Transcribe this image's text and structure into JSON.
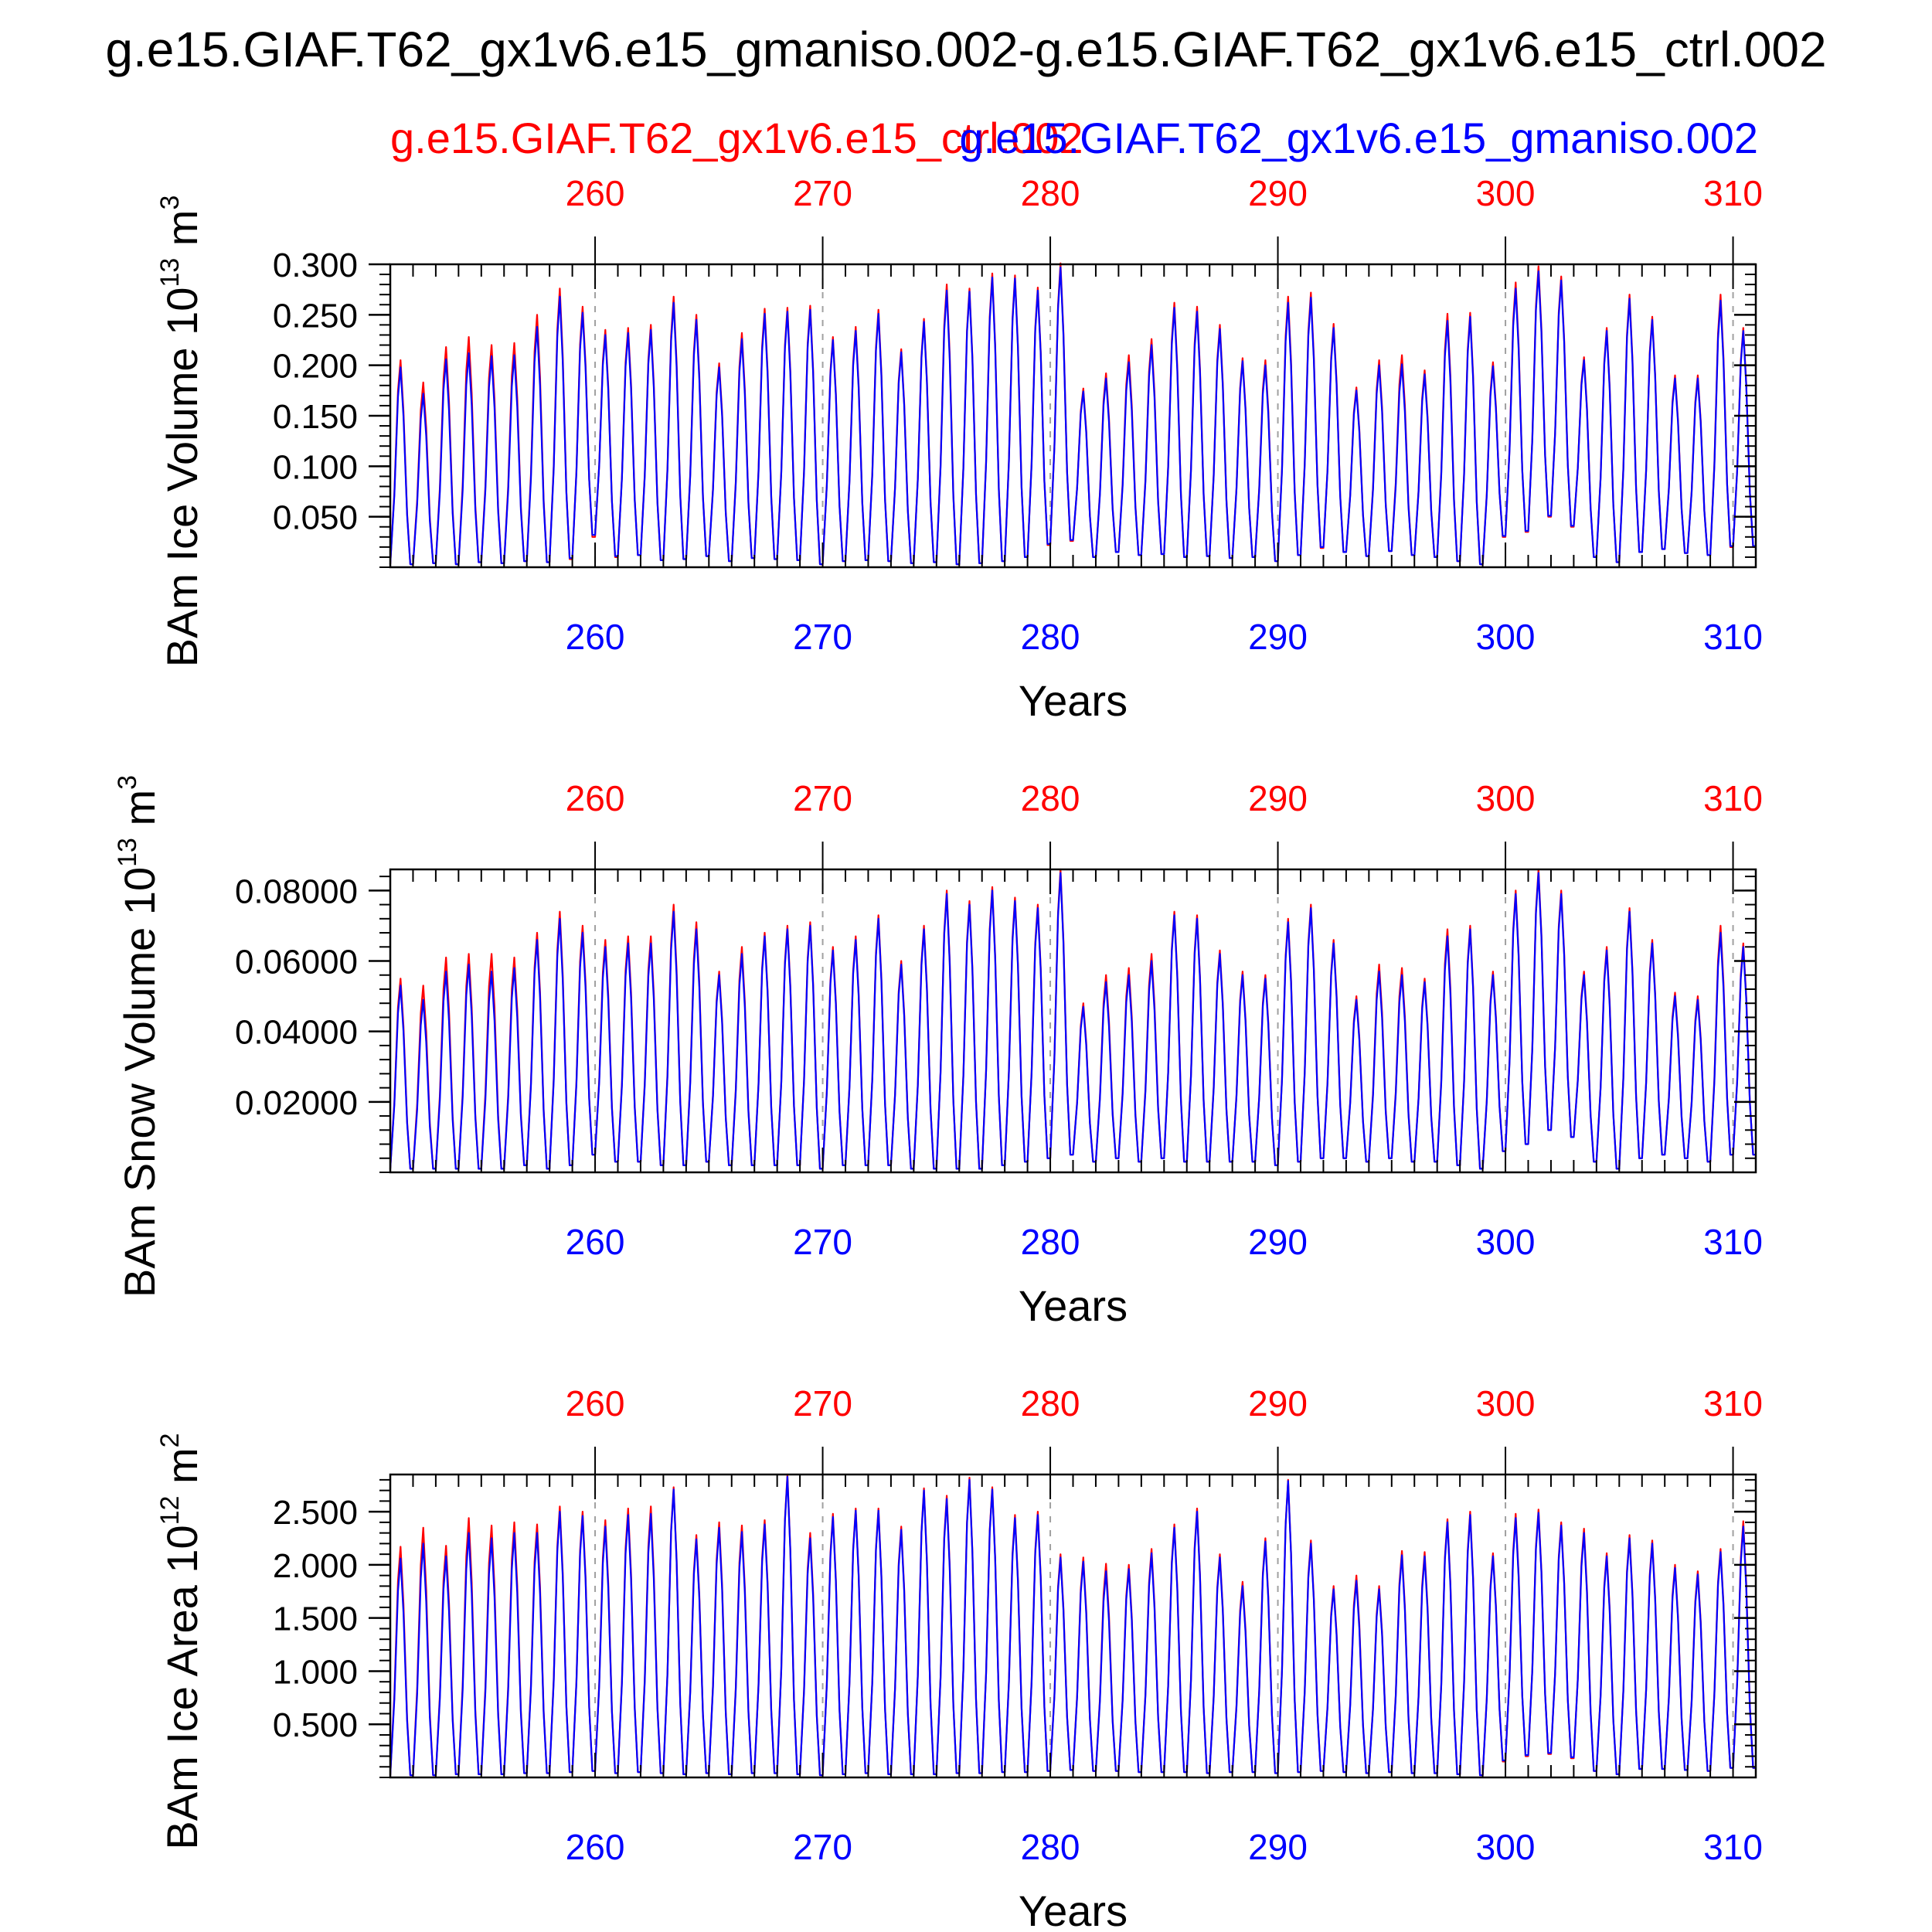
{
  "figure": {
    "title": "g.e15.GIAF.T62_gx1v6.e15_gmaniso.002-g.e15.GIAF.T62_gx1v6.e15_ctrl.002",
    "legend_red": "g.e15.GIAF.T62_gx1v6.e15_ctrl.002",
    "legend_blue": "g.e15.GIAF.T62_gx1v6.e15_gmaniso.002"
  },
  "colors": {
    "ctrl": "#ff0000",
    "gmaniso": "#0000ff",
    "axis": "#000000",
    "grid": "#a0a0a0"
  },
  "chart_data": [
    {
      "type": "line",
      "id": "ice_volume",
      "ylabel": "BAm Ice Volume 10",
      "ylabel_exp": "13",
      "ylabel_unit": " m",
      "ylabel_unit_exp": "3",
      "xlabel": "Years",
      "xlim": [
        251,
        311
      ],
      "ylim": [
        0.0,
        0.3
      ],
      "yticks": [
        0.05,
        0.1,
        0.15,
        0.2,
        0.25,
        0.3
      ],
      "ytick_labels": [
        "0.050",
        "0.100",
        "0.150",
        "0.200",
        "0.250",
        "0.300"
      ],
      "xticks": [
        260,
        270,
        280,
        290,
        300,
        310
      ],
      "xtick_labels": [
        "260",
        "270",
        "280",
        "290",
        "300",
        "310"
      ],
      "years": [
        251,
        252,
        253,
        254,
        255,
        256,
        257,
        258,
        259,
        260,
        261,
        262,
        263,
        264,
        265,
        266,
        267,
        268,
        269,
        270,
        271,
        272,
        273,
        274,
        275,
        276,
        277,
        278,
        279,
        280,
        281,
        282,
        283,
        284,
        285,
        286,
        287,
        288,
        289,
        290,
        291,
        292,
        293,
        294,
        295,
        296,
        297,
        298,
        299,
        300,
        301,
        302,
        303,
        304,
        305,
        306,
        307,
        308,
        309,
        310,
        311
      ],
      "series": [
        {
          "name": "g.e15.GIAF.T62_gx1v6.e15_ctrl.002",
          "color": "#ff0000",
          "max": [
            0.205,
            0.183,
            0.218,
            0.228,
            0.22,
            0.222,
            0.25,
            0.276,
            0.258,
            0.235,
            0.237,
            0.24,
            0.268,
            0.25,
            0.202,
            0.232,
            0.256,
            0.257,
            0.259,
            0.228,
            0.238,
            0.255,
            0.216,
            0.246,
            0.28,
            0.276,
            0.291,
            0.289,
            0.277,
            0.301,
            0.177,
            0.192,
            0.21,
            0.226,
            0.262,
            0.258,
            0.24,
            0.207,
            0.205,
            0.268,
            0.272,
            0.241,
            0.178,
            0.205,
            0.21,
            0.195,
            0.251,
            0.252,
            0.203,
            0.282,
            0.298,
            0.288,
            0.208,
            0.237,
            0.27,
            0.248,
            0.19,
            0.19,
            0.27,
            0.237,
            0.237
          ],
          "min": [
            0.003,
            0.004,
            0.003,
            0.005,
            0.004,
            0.006,
            0.005,
            0.008,
            0.03,
            0.01,
            0.012,
            0.007,
            0.008,
            0.011,
            0.006,
            0.009,
            0.008,
            0.007,
            0.003,
            0.006,
            0.007,
            0.006,
            0.004,
            0.005,
            0.003,
            0.004,
            0.006,
            0.01,
            0.022,
            0.026,
            0.01,
            0.015,
            0.012,
            0.013,
            0.01,
            0.011,
            0.009,
            0.01,
            0.006,
            0.012,
            0.019,
            0.015,
            0.011,
            0.016,
            0.012,
            0.01,
            0.006,
            0.003,
            0.03,
            0.035,
            0.05,
            0.04,
            0.01,
            0.005,
            0.015,
            0.018,
            0.014,
            0.012,
            0.02,
            0.02,
            0.02
          ]
        },
        {
          "name": "g.e15.GIAF.T62_gx1v6.e15_gmaniso.002",
          "color": "#0000ff",
          "max": [
            0.198,
            0.172,
            0.206,
            0.212,
            0.209,
            0.21,
            0.238,
            0.268,
            0.252,
            0.23,
            0.232,
            0.235,
            0.262,
            0.245,
            0.198,
            0.226,
            0.251,
            0.253,
            0.255,
            0.225,
            0.234,
            0.251,
            0.213,
            0.243,
            0.274,
            0.273,
            0.287,
            0.286,
            0.274,
            0.297,
            0.174,
            0.187,
            0.203,
            0.22,
            0.257,
            0.253,
            0.236,
            0.204,
            0.2,
            0.262,
            0.267,
            0.237,
            0.175,
            0.2,
            0.201,
            0.191,
            0.244,
            0.248,
            0.199,
            0.276,
            0.293,
            0.284,
            0.205,
            0.234,
            0.266,
            0.245,
            0.187,
            0.187,
            0.264,
            0.234,
            0.234
          ],
          "min": [
            0.003,
            0.004,
            0.003,
            0.005,
            0.004,
            0.006,
            0.005,
            0.009,
            0.032,
            0.011,
            0.012,
            0.007,
            0.008,
            0.011,
            0.006,
            0.009,
            0.008,
            0.007,
            0.003,
            0.006,
            0.007,
            0.006,
            0.004,
            0.005,
            0.003,
            0.004,
            0.006,
            0.01,
            0.023,
            0.027,
            0.01,
            0.015,
            0.012,
            0.013,
            0.01,
            0.011,
            0.009,
            0.01,
            0.006,
            0.012,
            0.02,
            0.015,
            0.011,
            0.016,
            0.012,
            0.01,
            0.006,
            0.003,
            0.031,
            0.036,
            0.051,
            0.041,
            0.01,
            0.005,
            0.015,
            0.018,
            0.014,
            0.012,
            0.021,
            0.021,
            0.021
          ]
        }
      ]
    },
    {
      "type": "line",
      "id": "snow_volume",
      "ylabel": "BAm Snow Volume 10",
      "ylabel_exp": "13",
      "ylabel_unit": " m",
      "ylabel_unit_exp": "3",
      "xlabel": "Years",
      "xlim": [
        251,
        311
      ],
      "ylim": [
        0.0,
        0.086
      ],
      "yticks": [
        0.02,
        0.04,
        0.06,
        0.08
      ],
      "ytick_labels": [
        "0.02000",
        "0.04000",
        "0.06000",
        "0.08000"
      ],
      "xticks": [
        260,
        270,
        280,
        290,
        300,
        310
      ],
      "xtick_labels": [
        "260",
        "270",
        "280",
        "290",
        "300",
        "310"
      ],
      "years": [
        251,
        252,
        253,
        254,
        255,
        256,
        257,
        258,
        259,
        260,
        261,
        262,
        263,
        264,
        265,
        266,
        267,
        268,
        269,
        270,
        271,
        272,
        273,
        274,
        275,
        276,
        277,
        278,
        279,
        280,
        281,
        282,
        283,
        284,
        285,
        286,
        287,
        288,
        289,
        290,
        291,
        292,
        293,
        294,
        295,
        296,
        297,
        298,
        299,
        300,
        301,
        302,
        303,
        304,
        305,
        306,
        307,
        308,
        309,
        310,
        311
      ],
      "series": [
        {
          "name": "g.e15.GIAF.T62_gx1v6.e15_ctrl.002",
          "color": "#ff0000",
          "max": [
            0.055,
            0.053,
            0.061,
            0.062,
            0.062,
            0.061,
            0.068,
            0.074,
            0.07,
            0.066,
            0.067,
            0.067,
            0.076,
            0.071,
            0.057,
            0.064,
            0.068,
            0.07,
            0.071,
            0.064,
            0.067,
            0.073,
            0.06,
            0.07,
            0.08,
            0.077,
            0.081,
            0.078,
            0.076,
            0.086,
            0.048,
            0.056,
            0.058,
            0.062,
            0.074,
            0.073,
            0.063,
            0.057,
            0.056,
            0.072,
            0.076,
            0.066,
            0.05,
            0.059,
            0.058,
            0.055,
            0.069,
            0.07,
            0.057,
            0.08,
            0.086,
            0.08,
            0.057,
            0.064,
            0.075,
            0.066,
            0.051,
            0.05,
            0.07,
            0.065,
            0.065
          ],
          "min": [
            0.001,
            0.001,
            0.001,
            0.001,
            0.001,
            0.002,
            0.001,
            0.002,
            0.005,
            0.003,
            0.003,
            0.002,
            0.002,
            0.003,
            0.002,
            0.002,
            0.002,
            0.002,
            0.001,
            0.002,
            0.002,
            0.002,
            0.001,
            0.001,
            0.001,
            0.001,
            0.002,
            0.003,
            0.004,
            0.005,
            0.003,
            0.004,
            0.003,
            0.004,
            0.003,
            0.003,
            0.003,
            0.003,
            0.002,
            0.003,
            0.004,
            0.004,
            0.003,
            0.004,
            0.003,
            0.003,
            0.002,
            0.001,
            0.006,
            0.008,
            0.012,
            0.01,
            0.003,
            0.001,
            0.004,
            0.005,
            0.004,
            0.003,
            0.005,
            0.005,
            0.005
          ]
        },
        {
          "name": "g.e15.GIAF.T62_gx1v6.e15_gmaniso.002",
          "color": "#0000ff",
          "max": [
            0.053,
            0.049,
            0.057,
            0.059,
            0.057,
            0.058,
            0.066,
            0.072,
            0.068,
            0.064,
            0.065,
            0.065,
            0.074,
            0.069,
            0.056,
            0.062,
            0.067,
            0.069,
            0.07,
            0.063,
            0.066,
            0.072,
            0.059,
            0.069,
            0.079,
            0.076,
            0.08,
            0.077,
            0.075,
            0.085,
            0.047,
            0.054,
            0.056,
            0.06,
            0.073,
            0.072,
            0.062,
            0.056,
            0.055,
            0.071,
            0.075,
            0.065,
            0.049,
            0.057,
            0.056,
            0.054,
            0.067,
            0.069,
            0.056,
            0.079,
            0.085,
            0.079,
            0.056,
            0.063,
            0.074,
            0.065,
            0.05,
            0.049,
            0.068,
            0.064,
            0.064
          ],
          "min": [
            0.001,
            0.001,
            0.001,
            0.001,
            0.001,
            0.002,
            0.001,
            0.002,
            0.005,
            0.003,
            0.003,
            0.002,
            0.002,
            0.003,
            0.002,
            0.002,
            0.002,
            0.002,
            0.001,
            0.002,
            0.002,
            0.002,
            0.001,
            0.001,
            0.001,
            0.001,
            0.002,
            0.003,
            0.004,
            0.005,
            0.003,
            0.004,
            0.003,
            0.004,
            0.003,
            0.003,
            0.003,
            0.003,
            0.002,
            0.003,
            0.004,
            0.004,
            0.003,
            0.004,
            0.003,
            0.003,
            0.002,
            0.001,
            0.006,
            0.008,
            0.012,
            0.01,
            0.003,
            0.001,
            0.004,
            0.005,
            0.004,
            0.003,
            0.005,
            0.005,
            0.005
          ]
        }
      ]
    },
    {
      "type": "line",
      "id": "ice_area",
      "ylabel": "BAm Ice Area 10",
      "ylabel_exp": "12",
      "ylabel_unit": " m",
      "ylabel_unit_exp": "2",
      "xlabel": "Years",
      "xlim": [
        251,
        311
      ],
      "ylim": [
        0.0,
        2.85
      ],
      "yticks": [
        0.5,
        1.0,
        1.5,
        2.0,
        2.5
      ],
      "ytick_labels": [
        "0.500",
        "1.000",
        "1.500",
        "2.000",
        "2.500"
      ],
      "xticks": [
        260,
        270,
        280,
        290,
        300,
        310
      ],
      "xtick_labels": [
        "260",
        "270",
        "280",
        "290",
        "300",
        "310"
      ],
      "years": [
        251,
        252,
        253,
        254,
        255,
        256,
        257,
        258,
        259,
        260,
        261,
        262,
        263,
        264,
        265,
        266,
        267,
        268,
        269,
        270,
        271,
        272,
        273,
        274,
        275,
        276,
        277,
        278,
        279,
        280,
        281,
        282,
        283,
        284,
        285,
        286,
        287,
        288,
        289,
        290,
        291,
        292,
        293,
        294,
        295,
        296,
        297,
        298,
        299,
        300,
        301,
        302,
        303,
        304,
        305,
        306,
        307,
        308,
        309,
        310,
        311
      ],
      "series": [
        {
          "name": "g.e15.GIAF.T62_gx1v6.e15_ctrl.002",
          "color": "#ff0000",
          "max": [
            2.17,
            2.35,
            2.18,
            2.44,
            2.37,
            2.4,
            2.38,
            2.55,
            2.5,
            2.42,
            2.53,
            2.55,
            2.73,
            2.28,
            2.4,
            2.37,
            2.42,
            2.85,
            2.3,
            2.48,
            2.53,
            2.53,
            2.36,
            2.72,
            2.65,
            2.82,
            2.73,
            2.47,
            2.5,
            2.1,
            2.07,
            2.01,
            2.0,
            2.15,
            2.38,
            2.53,
            2.1,
            1.84,
            2.25,
            2.8,
            2.23,
            1.8,
            1.9,
            1.8,
            2.13,
            2.12,
            2.43,
            2.5,
            2.11,
            2.48,
            2.52,
            2.4,
            2.34,
            2.11,
            2.28,
            2.23,
            2.0,
            1.94,
            2.15,
            2.41,
            2.41
          ],
          "min": [
            0.02,
            0.02,
            0.03,
            0.03,
            0.03,
            0.04,
            0.04,
            0.05,
            0.06,
            0.04,
            0.05,
            0.04,
            0.03,
            0.04,
            0.03,
            0.04,
            0.04,
            0.03,
            0.02,
            0.03,
            0.04,
            0.03,
            0.03,
            0.03,
            0.04,
            0.04,
            0.05,
            0.05,
            0.06,
            0.07,
            0.06,
            0.06,
            0.05,
            0.05,
            0.05,
            0.04,
            0.05,
            0.05,
            0.04,
            0.05,
            0.06,
            0.05,
            0.04,
            0.05,
            0.04,
            0.04,
            0.03,
            0.02,
            0.15,
            0.2,
            0.22,
            0.18,
            0.06,
            0.03,
            0.08,
            0.08,
            0.07,
            0.06,
            0.09,
            0.09,
            0.09
          ]
        },
        {
          "name": "g.e15.GIAF.T62_gx1v6.e15_gmaniso.002",
          "color": "#0000ff",
          "max": [
            2.06,
            2.2,
            2.08,
            2.3,
            2.25,
            2.3,
            2.3,
            2.5,
            2.46,
            2.36,
            2.47,
            2.48,
            2.71,
            2.24,
            2.35,
            2.31,
            2.38,
            2.83,
            2.25,
            2.45,
            2.51,
            2.51,
            2.33,
            2.7,
            2.62,
            2.8,
            2.71,
            2.44,
            2.47,
            2.07,
            2.03,
            1.94,
            1.96,
            2.11,
            2.35,
            2.5,
            2.07,
            1.8,
            2.22,
            2.79,
            2.2,
            1.77,
            1.85,
            1.77,
            2.09,
            2.08,
            2.4,
            2.47,
            2.08,
            2.44,
            2.49,
            2.37,
            2.3,
            2.08,
            2.25,
            2.2,
            1.97,
            1.91,
            2.12,
            2.36,
            2.36
          ],
          "min": [
            0.02,
            0.02,
            0.03,
            0.03,
            0.03,
            0.04,
            0.04,
            0.05,
            0.06,
            0.04,
            0.05,
            0.04,
            0.03,
            0.04,
            0.03,
            0.04,
            0.04,
            0.03,
            0.02,
            0.03,
            0.04,
            0.03,
            0.03,
            0.03,
            0.04,
            0.04,
            0.05,
            0.05,
            0.06,
            0.07,
            0.06,
            0.06,
            0.05,
            0.05,
            0.05,
            0.04,
            0.05,
            0.05,
            0.04,
            0.05,
            0.06,
            0.05,
            0.04,
            0.05,
            0.04,
            0.04,
            0.03,
            0.02,
            0.16,
            0.21,
            0.23,
            0.19,
            0.06,
            0.03,
            0.08,
            0.08,
            0.07,
            0.06,
            0.09,
            0.09,
            0.09
          ]
        }
      ]
    }
  ]
}
